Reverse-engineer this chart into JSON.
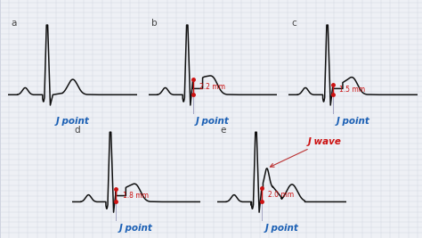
{
  "background_color": "#eef0f5",
  "grid_color_minor": "#d0d4e0",
  "grid_color_major": "#b8bcd0",
  "ecg_color": "#111111",
  "label_color_blue": "#1a5fb4",
  "label_color_red": "#cc1111",
  "annotation_arrow_color": "#bb3333",
  "panel_label_color": "#444444",
  "panels": [
    {
      "id": "a",
      "measurement": null,
      "j_wave_label": false,
      "elev": 0.0,
      "j_wave": false
    },
    {
      "id": "b",
      "measurement": "2.2 mm",
      "j_wave_label": false,
      "elev": 0.22,
      "j_wave": false
    },
    {
      "id": "c",
      "measurement": "1.5 mm",
      "j_wave_label": false,
      "elev": 0.15,
      "j_wave": false
    },
    {
      "id": "d",
      "measurement": "1.8 mm",
      "j_wave_label": false,
      "elev": 0.18,
      "j_wave": false
    },
    {
      "id": "e",
      "measurement": "2.0 mm",
      "j_wave_label": true,
      "elev": 0.2,
      "j_wave": true
    }
  ],
  "j_point_label": "J point",
  "j_wave_text": "J wave"
}
